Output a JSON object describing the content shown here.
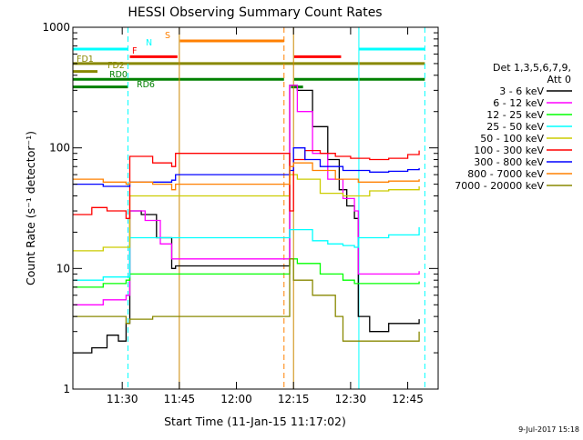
{
  "chart_data": {
    "type": "line",
    "title": "HESSI Observing Summary Count Rates",
    "xlabel": "Start Time (11-Jan-15 11:17:02)",
    "ylabel": "Count Rate (s⁻¹ detector⁻¹)",
    "y_scale": "log",
    "ylim": [
      1,
      1000
    ],
    "xlim": [
      "11:17:02",
      "12:53:00"
    ],
    "x_ticks": [
      "11:30",
      "11:45",
      "12:00",
      "12:15",
      "12:30",
      "12:45"
    ],
    "y_ticks": [
      "1",
      "10",
      "100",
      "1000"
    ],
    "legend_title": [
      "Det 1,3,5,6,7,9,",
      "Att 0"
    ],
    "legend_position": "right",
    "series": [
      {
        "name": "3 - 6 keV",
        "color": "#000000",
        "points": [
          [
            "11:17:02",
            2
          ],
          [
            "11:22",
            2.2
          ],
          [
            "11:26",
            2.8
          ],
          [
            "11:29",
            2.5
          ],
          [
            "11:31",
            3.5
          ],
          [
            "11:32",
            30
          ],
          [
            "11:35",
            28
          ],
          [
            "11:39",
            18
          ],
          [
            "11:43",
            10
          ],
          [
            "11:44",
            10.5
          ],
          [
            "12:14",
            330
          ],
          [
            "12:16",
            300
          ],
          [
            "12:20",
            150
          ],
          [
            "12:24",
            80
          ],
          [
            "12:27",
            45
          ],
          [
            "12:29",
            33
          ],
          [
            "12:31",
            26
          ],
          [
            "12:32",
            4
          ],
          [
            "12:35",
            3
          ],
          [
            "12:40",
            3.5
          ],
          [
            "12:45",
            3.5
          ],
          [
            "12:48",
            3.8
          ]
        ]
      },
      {
        "name": "6 - 12 keV",
        "color": "#ff00ff",
        "points": [
          [
            "11:17:02",
            5
          ],
          [
            "11:25",
            5.5
          ],
          [
            "11:31",
            6
          ],
          [
            "11:32",
            30
          ],
          [
            "11:36",
            25
          ],
          [
            "11:40",
            16
          ],
          [
            "11:43",
            12
          ],
          [
            "11:44",
            12
          ],
          [
            "12:14",
            330
          ],
          [
            "12:16",
            200
          ],
          [
            "12:20",
            90
          ],
          [
            "12:24",
            55
          ],
          [
            "12:28",
            38
          ],
          [
            "12:31",
            30
          ],
          [
            "12:32",
            9
          ],
          [
            "12:40",
            9
          ],
          [
            "12:48",
            9.5
          ]
        ]
      },
      {
        "name": "12 - 25 keV",
        "color": "#00ff00",
        "points": [
          [
            "11:17:02",
            7
          ],
          [
            "11:25",
            7.5
          ],
          [
            "11:31",
            8
          ],
          [
            "11:32",
            9
          ],
          [
            "11:38",
            9
          ],
          [
            "11:44",
            9
          ],
          [
            "12:14",
            12
          ],
          [
            "12:16",
            11
          ],
          [
            "12:22",
            9
          ],
          [
            "12:28",
            8
          ],
          [
            "12:31",
            7.5
          ],
          [
            "12:40",
            7.5
          ],
          [
            "12:48",
            7.8
          ]
        ]
      },
      {
        "name": "25 - 50 keV",
        "color": "#00ffff",
        "points": [
          [
            "11:17:02",
            8
          ],
          [
            "11:25",
            8.5
          ],
          [
            "11:31",
            8.5
          ],
          [
            "11:32",
            18
          ],
          [
            "11:38",
            18
          ],
          [
            "11:44",
            18
          ],
          [
            "12:14",
            21
          ],
          [
            "12:16",
            21
          ],
          [
            "12:20",
            17
          ],
          [
            "12:24",
            16
          ],
          [
            "12:28",
            15.5
          ],
          [
            "12:31",
            15
          ],
          [
            "12:32",
            18
          ],
          [
            "12:40",
            19
          ],
          [
            "12:48",
            22
          ]
        ]
      },
      {
        "name": "50 - 100 keV",
        "color": "#cccc00",
        "points": [
          [
            "11:17:02",
            14
          ],
          [
            "11:25",
            15
          ],
          [
            "11:31",
            15
          ],
          [
            "11:32",
            40
          ],
          [
            "11:38",
            40
          ],
          [
            "11:44",
            40
          ],
          [
            "12:14",
            60
          ],
          [
            "12:16",
            55
          ],
          [
            "12:22",
            42
          ],
          [
            "12:28",
            40
          ],
          [
            "12:35",
            44
          ],
          [
            "12:40",
            45
          ],
          [
            "12:48",
            48
          ]
        ]
      },
      {
        "name": "100 - 300 keV",
        "color": "#ff0000",
        "points": [
          [
            "11:17:02",
            28
          ],
          [
            "11:22",
            32
          ],
          [
            "11:26",
            30
          ],
          [
            "11:31",
            26
          ],
          [
            "11:32",
            85
          ],
          [
            "11:38",
            75
          ],
          [
            "11:43",
            70
          ],
          [
            "11:44",
            90
          ],
          [
            "12:14",
            30
          ],
          [
            "12:15",
            80
          ],
          [
            "12:18",
            95
          ],
          [
            "12:22",
            90
          ],
          [
            "12:26",
            85
          ],
          [
            "12:30",
            82
          ],
          [
            "12:35",
            80
          ],
          [
            "12:40",
            82
          ],
          [
            "12:45",
            88
          ],
          [
            "12:48",
            95
          ]
        ]
      },
      {
        "name": "300 - 800 keV",
        "color": "#0000ff",
        "points": [
          [
            "11:17:02",
            50
          ],
          [
            "11:25",
            48
          ],
          [
            "11:31",
            48
          ],
          [
            "11:32",
            52
          ],
          [
            "11:38",
            52
          ],
          [
            "11:43",
            54
          ],
          [
            "11:44",
            60
          ],
          [
            "12:14",
            65
          ],
          [
            "12:15",
            100
          ],
          [
            "12:18",
            80
          ],
          [
            "12:22",
            70
          ],
          [
            "12:28",
            65
          ],
          [
            "12:35",
            63
          ],
          [
            "12:40",
            64
          ],
          [
            "12:45",
            66
          ],
          [
            "12:48",
            68
          ]
        ]
      },
      {
        "name": "800 - 7000 keV",
        "color": "#ff8000",
        "points": [
          [
            "11:17:02",
            55
          ],
          [
            "11:25",
            52
          ],
          [
            "11:31",
            50
          ],
          [
            "11:32",
            52
          ],
          [
            "11:38",
            50
          ],
          [
            "11:43",
            45
          ],
          [
            "11:44",
            50
          ],
          [
            "12:14",
            70
          ],
          [
            "12:15",
            75
          ],
          [
            "12:20",
            65
          ],
          [
            "12:26",
            55
          ],
          [
            "12:32",
            52
          ],
          [
            "12:40",
            53
          ],
          [
            "12:48",
            55
          ]
        ]
      },
      {
        "name": "7000 - 20000 keV",
        "color": "#888800",
        "points": [
          [
            "11:17:02",
            4
          ],
          [
            "11:25",
            4
          ],
          [
            "11:31",
            3.5
          ],
          [
            "11:32",
            3.8
          ],
          [
            "11:38",
            4
          ],
          [
            "11:44",
            4
          ],
          [
            "12:14",
            12
          ],
          [
            "12:15",
            8
          ],
          [
            "12:20",
            6
          ],
          [
            "12:26",
            4
          ],
          [
            "12:28",
            2.5
          ],
          [
            "12:40",
            2.5
          ],
          [
            "12:48",
            3
          ]
        ]
      }
    ],
    "intervals": [
      {
        "label": "N",
        "color": "#00ffff",
        "start": "11:17:02",
        "end": "11:31:30",
        "start2": "12:32:10",
        "end2": "12:49:30",
        "y": 660
      },
      {
        "label": "F",
        "color": "#ff0000",
        "start": "11:32:00",
        "end": "11:44:30",
        "start2": "12:15:10",
        "end2": "12:27:30",
        "y": 570
      },
      {
        "label": "S",
        "color": "#ff8000",
        "start": "11:45:10",
        "end": "12:12:30",
        "y": 770
      },
      {
        "label": "FD1",
        "color": "#888800",
        "start": "11:17:02",
        "end": "12:49:30",
        "y": 500
      },
      {
        "label": "FD2",
        "color": "#888800",
        "start": "11:17:02",
        "end": "11:23:30",
        "y": 430
      },
      {
        "label": "RD0",
        "color": "#008000",
        "start": "11:17:02",
        "end": "12:12:30",
        "start2": "12:15:10",
        "end2": "12:49:30",
        "y": 370
      },
      {
        "label": "RD6",
        "color": "#008000",
        "start": "11:17:02",
        "end": "11:31:30",
        "start2": "12:14:20",
        "end2": "12:17:30",
        "y": 320
      }
    ],
    "vlines": [
      {
        "time": "11:17:02",
        "color": "#00ffff",
        "style": "solid"
      },
      {
        "time": "11:31:30",
        "color": "#00ffff",
        "style": "dashed"
      },
      {
        "time": "11:45:00",
        "color": "#cc8800",
        "style": "solid"
      },
      {
        "time": "12:12:30",
        "color": "#ff8000",
        "style": "dashed"
      },
      {
        "time": "12:15:00",
        "color": "#cc8800",
        "style": "solid"
      },
      {
        "time": "12:32:10",
        "color": "#00ffff",
        "style": "solid"
      },
      {
        "time": "12:49:30",
        "color": "#00ffff",
        "style": "dashed"
      }
    ]
  },
  "footer": {
    "timestamp": "9-Jul-2017 15:18"
  }
}
